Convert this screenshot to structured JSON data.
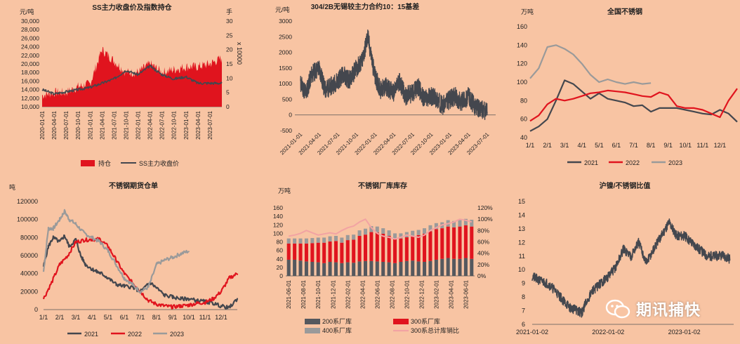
{
  "colors": {
    "background": "#f8c4a3",
    "red": "#e0141e",
    "dark": "#44474e",
    "gray": "#9a9a9a",
    "pink": "#f2a3a3"
  },
  "watermark": {
    "text": "期讯捕快",
    "icon": "wechat-logo-icon"
  },
  "chart_data": [
    {
      "type": "area+line",
      "title": "SS主力收盘价及指数持仓",
      "ylabel": "元/吨",
      "y2label": "手",
      "y2unit": "x 10000",
      "ylim": [
        10000,
        30000
      ],
      "yticks": [
        "10,000",
        "12,000",
        "14,000",
        "16,000",
        "18,000",
        "20,000",
        "22,000",
        "24,000",
        "26,000",
        "28,000",
        "30,000"
      ],
      "y2lim": [
        0,
        30
      ],
      "y2ticks": [
        "0",
        "5",
        "10",
        "15",
        "20",
        "25",
        "30"
      ],
      "xticks": [
        "2020-01-01",
        "2020-04-01",
        "2020-07-01",
        "2020-10-01",
        "2021-01-01",
        "2021-04-01",
        "2021-07-01",
        "2021-10-01",
        "2022-01-01",
        "2022-04-01",
        "2022-07-01",
        "2022-10-01",
        "2023-01-01",
        "2023-04-01",
        "2023-07-01"
      ],
      "legend": [
        "持仓",
        "SS主力收盘价"
      ],
      "series": [
        {
          "name": "持仓",
          "axis": "right",
          "x": [
            0,
            1,
            2,
            3,
            4,
            5,
            6,
            7,
            8,
            9,
            10,
            11,
            12,
            13,
            14,
            15
          ],
          "values": [
            4,
            5,
            5,
            7,
            8,
            20,
            16,
            12,
            12,
            15,
            12,
            13,
            14,
            14,
            15,
            17
          ]
        },
        {
          "name": "SS主力收盘价",
          "axis": "left",
          "x": [
            0,
            1,
            2,
            3,
            4,
            5,
            6,
            7,
            8,
            9,
            10,
            11,
            12,
            13,
            14,
            15
          ],
          "values": [
            14000,
            13000,
            13500,
            14000,
            14500,
            15500,
            16500,
            18500,
            17500,
            19500,
            17500,
            16500,
            17000,
            15500,
            15500,
            15500
          ]
        }
      ]
    },
    {
      "type": "line",
      "title": "304/2B无锡较主力合约10：15基差",
      "ylabel": "元/吨",
      "ylim": [
        -500,
        3000
      ],
      "yticks": [
        "-500",
        "0",
        "500",
        "1000",
        "1500",
        "2000",
        "2500",
        "3000"
      ],
      "xticks": [
        "2021-01-01",
        "2021-04-01",
        "2021-07-01",
        "2021-10-01",
        "2022-01-01",
        "2022-04-01",
        "2022-07-01",
        "2022-10-01",
        "2023-01-01",
        "2023-04-01",
        "2023-07-01"
      ],
      "series": [
        {
          "name": "",
          "x": [
            0,
            0.3,
            0.6,
            1,
            1.3,
            1.6,
            2,
            2.3,
            2.6,
            3,
            3.3,
            3.6,
            4,
            4.3,
            4.6,
            5,
            5.3,
            5.6,
            6,
            6.3,
            6.6,
            7,
            7.3,
            7.6,
            8,
            8.3,
            8.6,
            9,
            9.3,
            9.6,
            10
          ],
          "values": [
            1000,
            700,
            1300,
            1500,
            800,
            900,
            1100,
            1300,
            1100,
            1500,
            1700,
            2500,
            1200,
            800,
            900,
            700,
            1100,
            600,
            700,
            900,
            500,
            600,
            500,
            300,
            500,
            600,
            400,
            600,
            300,
            200,
            100
          ]
        }
      ]
    },
    {
      "type": "line",
      "title": "全国不锈钢",
      "ylabel": "万吨",
      "ylim": [
        40,
        160
      ],
      "yticks": [
        "40",
        "60",
        "80",
        "100",
        "120",
        "140",
        "160"
      ],
      "categories": [
        "1/1",
        "2/1",
        "3/1",
        "4/1",
        "5/1",
        "6/1",
        "7/1",
        "8/1",
        "9/1",
        "10/1",
        "11/1",
        "12/1"
      ],
      "legend": [
        "2021",
        "2022",
        "2023"
      ],
      "series": [
        {
          "name": "2021",
          "x": [
            0,
            0.5,
            1,
            1.5,
            2,
            2.5,
            3,
            3.5,
            4,
            4.5,
            5,
            5.5,
            6,
            6.5,
            7,
            7.5,
            8,
            8.5,
            9,
            9.5,
            10,
            10.5,
            11,
            11.5,
            12
          ],
          "values": [
            47,
            52,
            60,
            80,
            102,
            98,
            90,
            82,
            88,
            82,
            80,
            78,
            74,
            75,
            68,
            72,
            72,
            72,
            70,
            68,
            66,
            65,
            70,
            66,
            57
          ]
        },
        {
          "name": "2022",
          "x": [
            0,
            0.5,
            1,
            1.5,
            2,
            2.5,
            3,
            3.5,
            4,
            4.5,
            5,
            5.5,
            6,
            6.5,
            7,
            7.5,
            8,
            8.5,
            9,
            9.5,
            10,
            10.5,
            11,
            11.5,
            12
          ],
          "values": [
            58,
            64,
            76,
            82,
            80,
            82,
            85,
            88,
            89,
            91,
            90,
            89,
            87,
            85,
            84,
            89,
            86,
            74,
            72,
            72,
            70,
            66,
            62,
            80,
            93
          ]
        },
        {
          "name": "2023",
          "x": [
            0,
            0.5,
            1,
            1.5,
            2,
            2.5,
            3,
            3.5,
            4,
            4.5,
            5,
            5.5,
            6,
            6.5,
            7
          ],
          "values": [
            104,
            115,
            138,
            140,
            136,
            130,
            120,
            108,
            100,
            103,
            100,
            98,
            100,
            98,
            99
          ]
        }
      ]
    },
    {
      "type": "line",
      "title": "不锈钢期货仓单",
      "ylabel": "吨",
      "ylim": [
        0,
        120000
      ],
      "yticks": [
        "0",
        "20000",
        "40000",
        "60000",
        "80000",
        "100000",
        "120000"
      ],
      "categories": [
        "1/1",
        "2/1",
        "3/1",
        "4/1",
        "5/1",
        "6/1",
        "7/1",
        "8/1",
        "9/1",
        "10/1",
        "11/1",
        "12/1"
      ],
      "legend": [
        "2021",
        "2022",
        "2023"
      ],
      "series": [
        {
          "name": "2021",
          "x": [
            0,
            0.3,
            0.6,
            1,
            1.3,
            1.6,
            2,
            2.3,
            2.6,
            3,
            3.3,
            3.6,
            4,
            4.5,
            5,
            5.5,
            6,
            6.3,
            6.6,
            7,
            7.5,
            8,
            8.5,
            9,
            9.5,
            10,
            10.5,
            11,
            11.5,
            12
          ],
          "values": [
            48000,
            70000,
            80000,
            75000,
            82000,
            70000,
            78000,
            60000,
            50000,
            45000,
            42000,
            40000,
            35000,
            28000,
            26000,
            25000,
            20000,
            25000,
            30000,
            24000,
            16000,
            14000,
            12000,
            12000,
            10000,
            9000,
            7000,
            4000,
            2000,
            12000
          ]
        },
        {
          "name": "2022",
          "x": [
            0,
            0.5,
            1,
            1.5,
            2,
            2.5,
            3,
            3.5,
            4,
            4.5,
            5,
            5.5,
            6,
            6.5,
            7,
            7.5,
            8,
            8.5,
            9,
            9.5,
            10,
            10.5,
            11,
            11.5,
            12
          ],
          "values": [
            12000,
            30000,
            50000,
            60000,
            75000,
            77000,
            78000,
            78000,
            70000,
            55000,
            40000,
            30000,
            20000,
            10000,
            6000,
            4000,
            3000,
            4000,
            5000,
            7000,
            8000,
            12000,
            20000,
            35000,
            40000
          ]
        },
        {
          "name": "2023",
          "x": [
            0,
            0.3,
            0.6,
            1,
            1.3,
            1.6,
            2,
            2.5,
            3,
            3.5,
            4,
            4.5,
            5,
            5.5,
            6,
            6.5,
            7,
            7.5,
            8,
            8.5,
            9
          ],
          "values": [
            42000,
            90000,
            90000,
            100000,
            109000,
            100000,
            95000,
            85000,
            80000,
            75000,
            65000,
            50000,
            35000,
            28000,
            20000,
            25000,
            50000,
            55000,
            58000,
            62000,
            65000
          ]
        }
      ]
    },
    {
      "type": "stacked bar+line",
      "title": "不锈钢厂库库存",
      "ylabel": "万吨",
      "ylim": [
        0,
        160
      ],
      "yticks": [
        "0",
        "20",
        "40",
        "60",
        "80",
        "100",
        "120",
        "140",
        "160"
      ],
      "y2lim": [
        0,
        120
      ],
      "y2ticks": [
        "0%",
        "20%",
        "40%",
        "60%",
        "80%",
        "100%",
        "120%"
      ],
      "xticks": [
        "2021-06-01",
        "2021-08-01",
        "2021-10-01",
        "2021-12-01",
        "2022-02-01",
        "2022-04-01",
        "2022-06-01",
        "2022-08-01",
        "2022-10-01",
        "2022-12-01",
        "2023-02-01",
        "2023-04-01",
        "2023-06-01"
      ],
      "legend": [
        "200系厂库",
        "300系厂库",
        "400系厂库",
        "300系总计库销比"
      ],
      "series": [
        {
          "name": "200系厂库",
          "values": [
            38,
            38,
            36,
            34,
            33,
            32,
            30,
            33,
            32,
            30,
            32,
            31,
            34,
            35,
            35,
            34,
            33,
            32,
            30,
            33,
            35,
            36,
            34,
            33,
            35,
            38,
            40,
            42,
            40,
            40,
            42,
            40
          ]
        },
        {
          "name": "300系厂库",
          "values": [
            38,
            38,
            40,
            42,
            44,
            46,
            48,
            48,
            50,
            48,
            52,
            54,
            60,
            62,
            68,
            68,
            66,
            62,
            58,
            55,
            56,
            58,
            62,
            66,
            70,
            72,
            72,
            74,
            74,
            76,
            77,
            76
          ]
        },
        {
          "name": "400系厂库",
          "values": [
            12,
            12,
            12,
            12,
            12,
            12,
            12,
            12,
            12,
            12,
            12,
            12,
            13,
            14,
            14,
            14,
            13,
            13,
            12,
            12,
            12,
            12,
            12,
            13,
            14,
            14,
            14,
            15,
            15,
            15,
            15,
            16
          ]
        },
        {
          "name": "300系总计库销比",
          "axis": "right",
          "values": [
            70,
            72,
            75,
            80,
            76,
            72,
            74,
            76,
            74,
            80,
            85,
            88,
            95,
            100,
            85,
            75,
            70,
            68,
            65,
            68,
            72,
            70,
            68,
            72,
            80,
            85,
            90,
            92,
            95,
            100,
            98,
            95
          ]
        }
      ]
    },
    {
      "type": "line",
      "title": "沪镍/不锈钢比值",
      "ylim": [
        6,
        15
      ],
      "yticks": [
        "6",
        "7",
        "8",
        "9",
        "10",
        "11",
        "12",
        "13",
        "14",
        "15"
      ],
      "xticks": [
        "2021-01-02",
        "2022-01-02",
        "2023-01-02"
      ],
      "series": [
        {
          "name": "",
          "x": [
            0,
            0.1,
            0.2,
            0.3,
            0.4,
            0.5,
            0.6,
            0.65,
            0.7,
            0.8,
            0.9,
            1.0,
            1.1,
            1.2,
            1.3,
            1.4,
            1.5,
            1.6,
            1.7,
            1.8,
            1.9,
            2.0,
            2.1,
            2.2,
            2.3,
            2.4,
            2.5,
            2.6
          ],
          "values": [
            9.5,
            9.2,
            9.0,
            8.5,
            7.8,
            7.2,
            7.0,
            6.8,
            7.5,
            8.5,
            9.0,
            9.5,
            10.2,
            11.5,
            11.0,
            12.0,
            10.5,
            11.5,
            12.5,
            13.5,
            12.5,
            12.5,
            12.0,
            11.5,
            11.0,
            11.0,
            11.0,
            10.8
          ]
        }
      ]
    }
  ]
}
